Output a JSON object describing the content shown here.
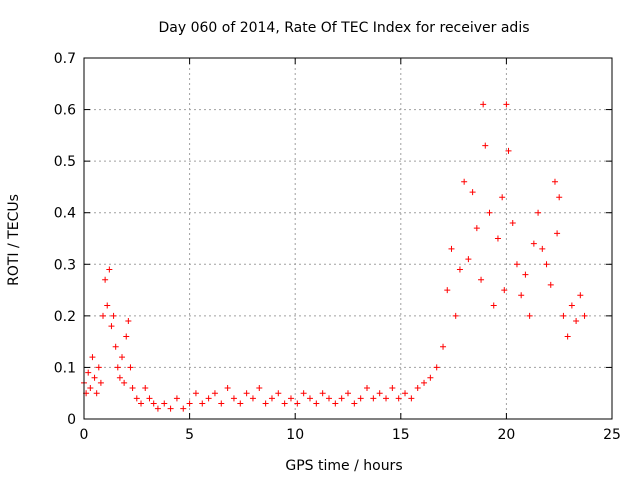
{
  "chart_data": {
    "type": "scatter",
    "title": "Day 060 of 2014, Rate Of TEC Index for receiver adis",
    "xlabel": "GPS time / hours",
    "ylabel": "ROTI / TECUs",
    "xlim": [
      0,
      25
    ],
    "ylim": [
      0,
      0.7
    ],
    "xticks": [
      "0",
      "5",
      "10",
      "15",
      "20",
      "25"
    ],
    "xtick_values": [
      0,
      5,
      10,
      15,
      20,
      25
    ],
    "yticks": [
      "0",
      "0.1",
      "0.2",
      "0.3",
      "0.4",
      "0.5",
      "0.6",
      "0.7"
    ],
    "ytick_values": [
      0,
      0.1,
      0.2,
      0.3,
      0.4,
      0.5,
      0.6,
      0.7
    ],
    "grid": true,
    "marker": "+",
    "series": [
      {
        "name": "ROTI",
        "color": "#ff0000",
        "x": [
          0.0,
          0.1,
          0.2,
          0.3,
          0.4,
          0.5,
          0.6,
          0.7,
          0.8,
          0.9,
          1.0,
          1.1,
          1.2,
          1.3,
          1.4,
          1.5,
          1.6,
          1.7,
          1.8,
          1.9,
          2.0,
          2.1,
          2.2,
          2.3,
          2.5,
          2.7,
          2.9,
          3.1,
          3.3,
          3.5,
          3.8,
          4.1,
          4.4,
          4.7,
          5.0,
          5.3,
          5.6,
          5.9,
          6.2,
          6.5,
          6.8,
          7.1,
          7.4,
          7.7,
          8.0,
          8.3,
          8.6,
          8.9,
          9.2,
          9.5,
          9.8,
          10.1,
          10.4,
          10.7,
          11.0,
          11.3,
          11.6,
          11.9,
          12.2,
          12.5,
          12.8,
          13.1,
          13.4,
          13.7,
          14.0,
          14.3,
          14.6,
          14.9,
          15.2,
          15.5,
          15.8,
          16.1,
          16.4,
          16.7,
          17.0,
          17.2,
          17.4,
          17.6,
          17.8,
          18.0,
          18.2,
          18.4,
          18.6,
          18.8,
          18.9,
          19.0,
          19.2,
          19.4,
          19.6,
          19.8,
          19.9,
          20.0,
          20.1,
          20.3,
          20.5,
          20.7,
          20.9,
          21.1,
          21.3,
          21.5,
          21.7,
          21.9,
          22.1,
          22.3,
          22.4,
          22.5,
          22.7,
          22.9,
          23.1,
          23.3,
          23.5,
          23.7
        ],
        "y": [
          0.07,
          0.05,
          0.09,
          0.06,
          0.12,
          0.08,
          0.05,
          0.1,
          0.07,
          0.2,
          0.27,
          0.22,
          0.29,
          0.18,
          0.2,
          0.14,
          0.1,
          0.08,
          0.12,
          0.07,
          0.16,
          0.19,
          0.1,
          0.06,
          0.04,
          0.03,
          0.06,
          0.04,
          0.03,
          0.02,
          0.03,
          0.02,
          0.04,
          0.02,
          0.03,
          0.05,
          0.03,
          0.04,
          0.05,
          0.03,
          0.06,
          0.04,
          0.03,
          0.05,
          0.04,
          0.06,
          0.03,
          0.04,
          0.05,
          0.03,
          0.04,
          0.03,
          0.05,
          0.04,
          0.03,
          0.05,
          0.04,
          0.03,
          0.04,
          0.05,
          0.03,
          0.04,
          0.06,
          0.04,
          0.05,
          0.04,
          0.06,
          0.04,
          0.05,
          0.04,
          0.06,
          0.07,
          0.08,
          0.1,
          0.14,
          0.25,
          0.33,
          0.2,
          0.29,
          0.46,
          0.31,
          0.44,
          0.37,
          0.27,
          0.61,
          0.53,
          0.4,
          0.22,
          0.35,
          0.43,
          0.25,
          0.61,
          0.52,
          0.38,
          0.3,
          0.24,
          0.28,
          0.2,
          0.34,
          0.4,
          0.33,
          0.3,
          0.26,
          0.46,
          0.36,
          0.43,
          0.2,
          0.16,
          0.22,
          0.19,
          0.24,
          0.2
        ]
      }
    ]
  }
}
